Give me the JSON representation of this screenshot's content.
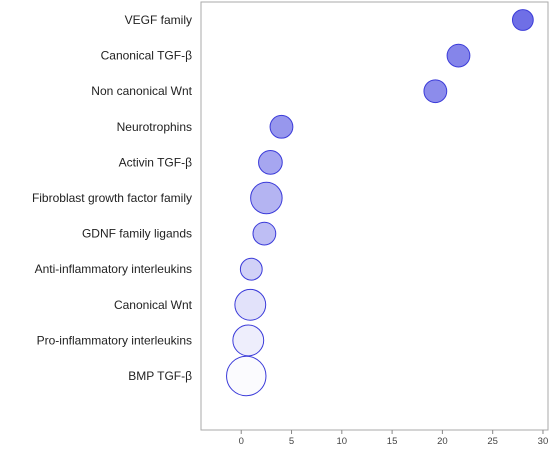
{
  "chart_data": {
    "type": "scatter",
    "subtype": "bubble",
    "title": "",
    "xlabel": "",
    "ylabel": "",
    "xlim": [
      -4,
      30.5
    ],
    "xticks": [
      0,
      5,
      10,
      15,
      20,
      25,
      30
    ],
    "grid": false,
    "legend": "none",
    "colors": {
      "stroke": "#3b3bd9",
      "fill_low": "#ffffff",
      "fill_high": "#6f6fe6",
      "frame": "#aaaaaa"
    },
    "categories": [
      "VEGF family",
      "Canonical TGF-β",
      "Non canonical Wnt",
      "Neurotrophins",
      "Activin TGF-β",
      "Fibroblast growth  factor family",
      "GDNF family ligands",
      "Anti-inflammatory interleukins",
      "Canonical Wnt",
      "Pro-inflammatory  interleukins",
      "BMP TGF-β"
    ],
    "x": [
      28.0,
      21.6,
      19.3,
      4.0,
      2.9,
      2.5,
      2.3,
      1.0,
      0.9,
      0.7,
      0.5
    ],
    "size": [
      1.0,
      1.2,
      1.2,
      1.2,
      1.3,
      2.3,
      1.2,
      1.1,
      2.2,
      2.2,
      3.6
    ],
    "color_value": [
      1.0,
      0.85,
      0.8,
      0.72,
      0.62,
      0.52,
      0.45,
      0.32,
      0.2,
      0.12,
      0.03
    ]
  }
}
